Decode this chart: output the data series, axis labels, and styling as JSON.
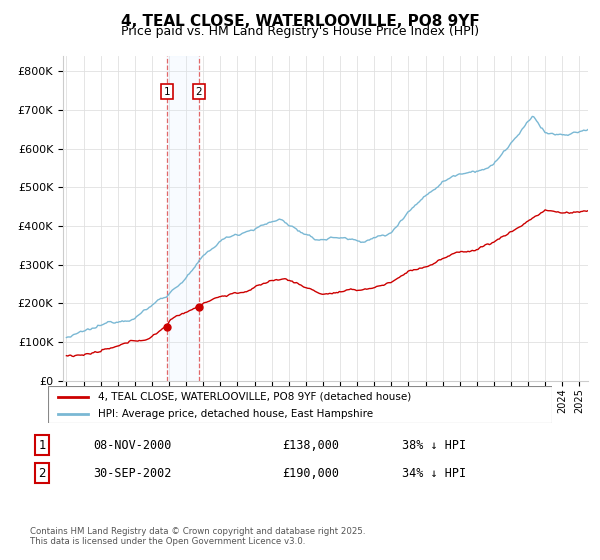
{
  "title": "4, TEAL CLOSE, WATERLOOVILLE, PO8 9YF",
  "subtitle": "Price paid vs. HM Land Registry's House Price Index (HPI)",
  "title_fontsize": 11,
  "subtitle_fontsize": 9,
  "ylabel_ticks": [
    "£0",
    "£100K",
    "£200K",
    "£300K",
    "£400K",
    "£500K",
    "£600K",
    "£700K",
    "£800K"
  ],
  "ytick_values": [
    0,
    100000,
    200000,
    300000,
    400000,
    500000,
    600000,
    700000,
    800000
  ],
  "ylim": [
    0,
    840000
  ],
  "xlim_start": 1994.8,
  "xlim_end": 2025.5,
  "hpi_color": "#7ab8d4",
  "price_color": "#cc0000",
  "sale1_date_label": "08-NOV-2000",
  "sale1_price_label": "£138,000",
  "sale1_pct_label": "38% ↓ HPI",
  "sale2_date_label": "30-SEP-2002",
  "sale2_price_label": "£190,000",
  "sale2_pct_label": "34% ↓ HPI",
  "sale1_x": 2000.86,
  "sale1_y": 138000,
  "sale2_x": 2002.75,
  "sale2_y": 190000,
  "legend_label_red": "4, TEAL CLOSE, WATERLOOVILLE, PO8 9YF (detached house)",
  "legend_label_blue": "HPI: Average price, detached house, East Hampshire",
  "footer": "Contains HM Land Registry data © Crown copyright and database right 2025.\nThis data is licensed under the Open Government Licence v3.0.",
  "background_color": "#ffffff",
  "grid_color": "#e0e0e0",
  "vspan_color": "#ddeeff",
  "vline_color": "#dd4444"
}
